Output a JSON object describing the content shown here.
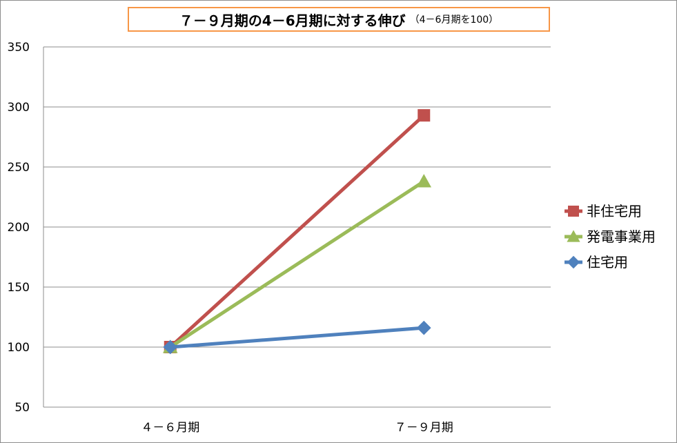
{
  "chart_data": {
    "type": "line",
    "title": "７－９月期の4－6月期に対する伸び",
    "subtitle": "（4－6月期を100）",
    "categories": [
      "４－６月期",
      "７－９月期"
    ],
    "ylim": [
      50,
      350
    ],
    "yticks": [
      50,
      100,
      150,
      200,
      250,
      300,
      350
    ],
    "grid": true,
    "legend_position": "right",
    "series": [
      {
        "name": "非住宅用",
        "values": [
          100,
          293
        ],
        "color": "#c0504d",
        "marker": "square"
      },
      {
        "name": "発電事業用",
        "values": [
          100,
          238
        ],
        "color": "#9bbb59",
        "marker": "triangle"
      },
      {
        "name": "住宅用",
        "values": [
          100,
          116
        ],
        "color": "#4f81bd",
        "marker": "diamond"
      }
    ]
  }
}
